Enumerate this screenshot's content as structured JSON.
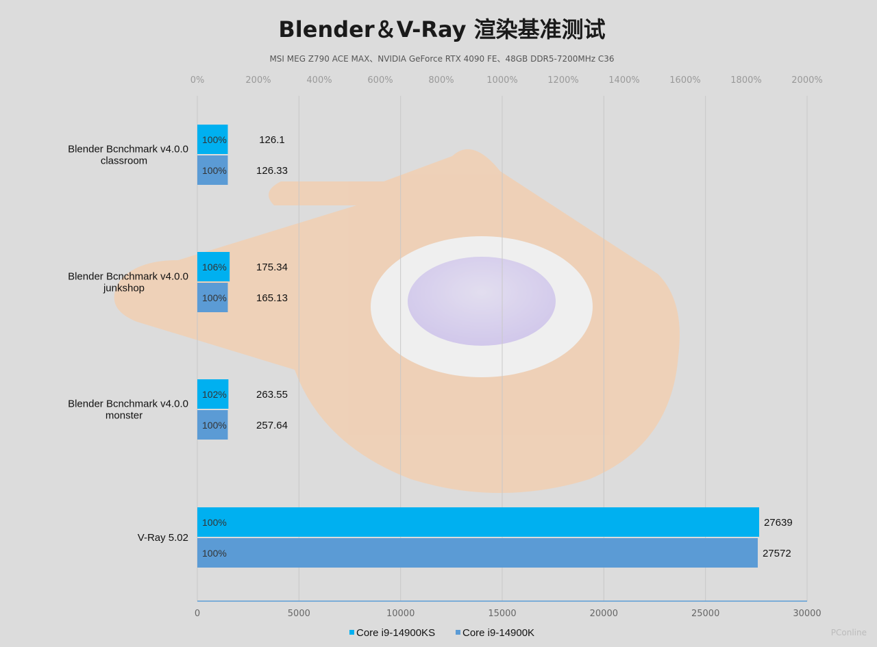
{
  "chart_data": {
    "type": "bar",
    "orientation": "horizontal",
    "title": "Blender＆V-Ray 渲染基准测试",
    "subtitle": "MSI MEG Z790 ACE MAX、NVIDIA  GeForce RTX 4090 FE、48GB DDR5-7200MHz  C36",
    "categories": [
      [
        "Blender Bcnchmark v4.0.0",
        "classroom"
      ],
      [
        "Blender Bcnchmark v4.0.0",
        "junkshop"
      ],
      [
        "Blender Bcnchmark v4.0.0",
        "monster"
      ],
      [
        "V-Ray 5.02"
      ]
    ],
    "series": [
      {
        "name": "Core i9-14900KS",
        "color": "#00b0f0",
        "values": [
          126.1,
          175.34,
          263.55,
          27639
        ],
        "value_labels": [
          "126.1",
          "175.34",
          "263.55",
          "27639"
        ],
        "percent": [
          100,
          106,
          102,
          100
        ],
        "percent_labels": [
          "100%",
          "106%",
          "102%",
          "100%"
        ]
      },
      {
        "name": "Core i9-14900K",
        "color": "#5b9bd5",
        "values": [
          126.33,
          165.13,
          257.64,
          27572
        ],
        "value_labels": [
          "126.33",
          "165.13",
          "257.64",
          "27572"
        ],
        "percent": [
          100,
          100,
          100,
          100
        ],
        "percent_labels": [
          "100%",
          "100%",
          "100%",
          "100%"
        ]
      }
    ],
    "x_axis_bottom": {
      "range": [
        0,
        30000
      ],
      "ticks": [
        "0",
        "5000",
        "10000",
        "15000",
        "20000",
        "25000",
        "30000"
      ]
    },
    "x_axis_top": {
      "range": [
        0,
        2000
      ],
      "unit": "%",
      "ticks": [
        "0%",
        "200%",
        "400%",
        "600%",
        "800%",
        "1000%",
        "1200%",
        "1400%",
        "1600%",
        "1800%",
        "2000%"
      ]
    },
    "grid": true,
    "legend_position": "bottom"
  },
  "watermark": "PConline"
}
